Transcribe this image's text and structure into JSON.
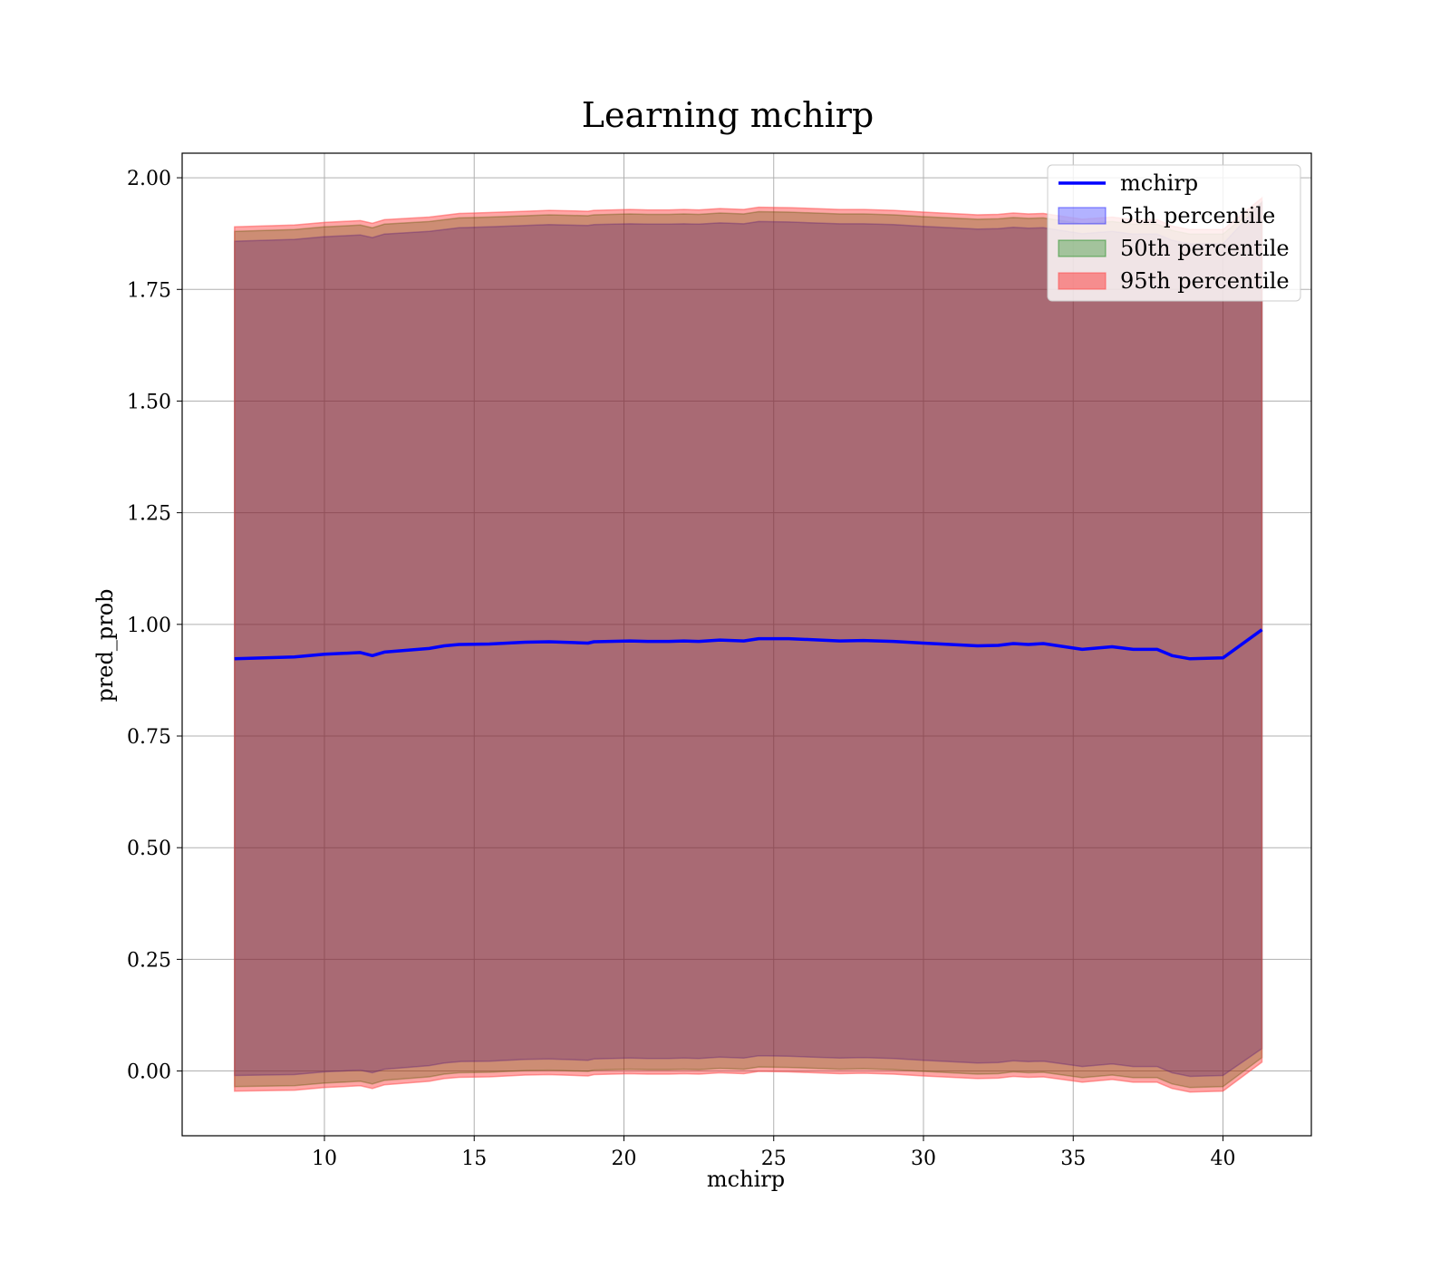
{
  "chart_data": {
    "type": "line",
    "title": "Learning mchirp",
    "xlabel": "mchirp",
    "ylabel": "pred_prob",
    "xlim": [
      5.25,
      42.95
    ],
    "ylim": [
      -0.145,
      2.055
    ],
    "xticks": [
      10,
      15,
      20,
      25,
      30,
      35,
      40
    ],
    "yticks": [
      0.0,
      0.25,
      0.5,
      0.75,
      1.0,
      1.25,
      1.5,
      1.75,
      2.0
    ],
    "xtick_labels": [
      "10",
      "15",
      "20",
      "25",
      "30",
      "35",
      "40"
    ],
    "ytick_labels": [
      "0.00",
      "0.25",
      "0.50",
      "0.75",
      "1.00",
      "1.25",
      "1.50",
      "1.75",
      "2.00"
    ],
    "grid": true,
    "legend_position": "top-right",
    "legend": [
      "mchirp",
      "5th percentile",
      "50th percentile",
      "95th percentile"
    ],
    "x": [
      7.0,
      9.0,
      10.0,
      11.2,
      11.6,
      12.0,
      13.5,
      14.0,
      14.5,
      15.5,
      16.7,
      17.5,
      18.8,
      19.0,
      20.2,
      20.8,
      21.5,
      22.0,
      22.5,
      23.2,
      24.0,
      24.5,
      25.5,
      27.2,
      28.0,
      29.0,
      30.0,
      31.8,
      32.5,
      33.0,
      33.5,
      34.0,
      35.3,
      36.3,
      37.0,
      37.8,
      38.3,
      38.9,
      40.0,
      41.3
    ],
    "series": [
      {
        "name": "mchirp",
        "color": "#0000ff",
        "values": [
          0.923,
          0.927,
          0.933,
          0.937,
          0.93,
          0.938,
          0.946,
          0.952,
          0.955,
          0.956,
          0.96,
          0.961,
          0.958,
          0.961,
          0.963,
          0.962,
          0.962,
          0.963,
          0.962,
          0.965,
          0.963,
          0.968,
          0.968,
          0.963,
          0.964,
          0.962,
          0.958,
          0.952,
          0.953,
          0.957,
          0.955,
          0.957,
          0.944,
          0.95,
          0.944,
          0.944,
          0.93,
          0.923,
          0.925,
          0.988
        ]
      },
      {
        "name": "5th percentile",
        "color": "#0000ff",
        "upper": [
          1.858,
          1.862,
          1.868,
          1.872,
          1.866,
          1.874,
          1.88,
          1.884,
          1.888,
          1.89,
          1.893,
          1.895,
          1.893,
          1.895,
          1.897,
          1.896,
          1.896,
          1.897,
          1.896,
          1.899,
          1.897,
          1.902,
          1.901,
          1.897,
          1.897,
          1.895,
          1.891,
          1.885,
          1.886,
          1.889,
          1.887,
          1.888,
          1.875,
          1.88,
          1.874,
          1.874,
          1.86,
          1.852,
          1.852,
          1.945
        ],
        "lower": [
          -0.01,
          -0.008,
          -0.002,
          0.002,
          -0.004,
          0.004,
          0.012,
          0.018,
          0.021,
          0.022,
          0.026,
          0.027,
          0.024,
          0.027,
          0.029,
          0.028,
          0.028,
          0.029,
          0.028,
          0.031,
          0.029,
          0.034,
          0.033,
          0.029,
          0.03,
          0.028,
          0.024,
          0.018,
          0.019,
          0.023,
          0.021,
          0.022,
          0.01,
          0.016,
          0.01,
          0.01,
          -0.004,
          -0.012,
          -0.01,
          0.05
        ]
      },
      {
        "name": "50th percentile",
        "color": "#008000",
        "upper": [
          1.88,
          1.884,
          1.89,
          1.894,
          1.888,
          1.896,
          1.902,
          1.906,
          1.91,
          1.912,
          1.915,
          1.917,
          1.915,
          1.917,
          1.919,
          1.918,
          1.918,
          1.919,
          1.918,
          1.921,
          1.919,
          1.924,
          1.923,
          1.919,
          1.919,
          1.917,
          1.913,
          1.907,
          1.908,
          1.911,
          1.909,
          1.91,
          1.897,
          1.902,
          1.896,
          1.896,
          1.882,
          1.874,
          1.874,
          1.945
        ],
        "lower": [
          -0.035,
          -0.033,
          -0.027,
          -0.023,
          -0.029,
          -0.021,
          -0.013,
          -0.007,
          -0.004,
          -0.003,
          0.001,
          0.002,
          -0.001,
          0.002,
          0.004,
          0.003,
          0.003,
          0.004,
          0.003,
          0.006,
          0.004,
          0.009,
          0.008,
          0.004,
          0.005,
          0.003,
          -0.001,
          -0.007,
          -0.006,
          -0.002,
          -0.004,
          -0.003,
          -0.015,
          -0.009,
          -0.015,
          -0.015,
          -0.029,
          -0.037,
          -0.035,
          0.03
        ]
      },
      {
        "name": "95th percentile",
        "color": "#ff0000",
        "upper": [
          1.89,
          1.894,
          1.9,
          1.904,
          1.898,
          1.906,
          1.912,
          1.916,
          1.92,
          1.922,
          1.925,
          1.927,
          1.925,
          1.927,
          1.929,
          1.928,
          1.928,
          1.929,
          1.928,
          1.931,
          1.929,
          1.934,
          1.933,
          1.929,
          1.929,
          1.927,
          1.923,
          1.917,
          1.918,
          1.921,
          1.919,
          1.92,
          1.907,
          1.912,
          1.906,
          1.906,
          1.892,
          1.884,
          1.884,
          1.955
        ],
        "lower": [
          -0.045,
          -0.043,
          -0.037,
          -0.033,
          -0.039,
          -0.031,
          -0.023,
          -0.017,
          -0.014,
          -0.013,
          -0.009,
          -0.008,
          -0.011,
          -0.008,
          -0.006,
          -0.007,
          -0.007,
          -0.006,
          -0.007,
          -0.004,
          -0.006,
          -0.001,
          -0.002,
          -0.006,
          -0.005,
          -0.007,
          -0.011,
          -0.017,
          -0.016,
          -0.012,
          -0.014,
          -0.013,
          -0.025,
          -0.019,
          -0.025,
          -0.025,
          -0.039,
          -0.047,
          -0.045,
          0.02
        ]
      }
    ]
  }
}
